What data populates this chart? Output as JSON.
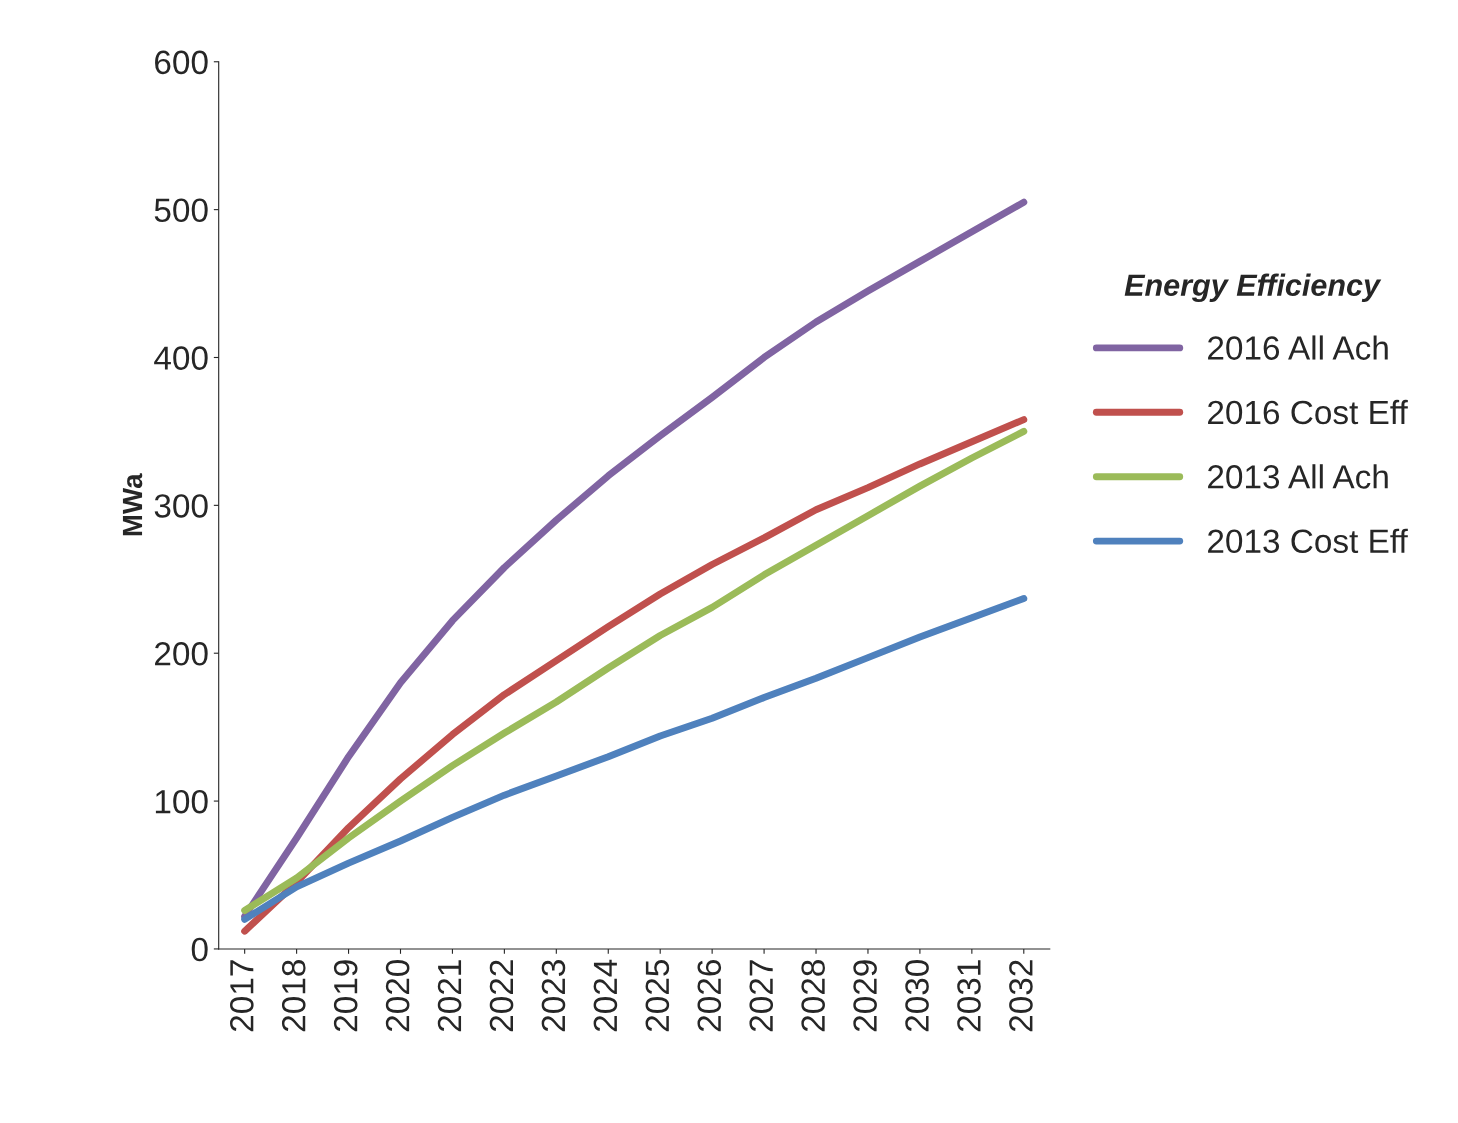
{
  "chart_data": {
    "type": "line",
    "ylabel": "MWa",
    "legend_title": "Energy Efficiency",
    "legend": "right",
    "grid": false,
    "marker": "none",
    "line_style": "solid",
    "categories": [
      "2017",
      "2018",
      "2019",
      "2020",
      "2021",
      "2022",
      "2023",
      "2024",
      "2025",
      "2026",
      "2027",
      "2028",
      "2029",
      "2030",
      "2031",
      "2032"
    ],
    "ylim": [
      0,
      600
    ],
    "yticks": [
      0,
      100,
      200,
      300,
      400,
      500,
      600
    ],
    "series": [
      {
        "name": "2016 All Ach",
        "color": "#8064a2",
        "values": [
          22,
          75,
          130,
          180,
          222,
          258,
          290,
          320,
          347,
          373,
          400,
          424,
          445,
          465,
          485,
          505
        ]
      },
      {
        "name": "2016 Cost Eff",
        "color": "#c0504d",
        "values": [
          12,
          45,
          82,
          115,
          145,
          172,
          195,
          218,
          240,
          260,
          278,
          297,
          312,
          328,
          343,
          358
        ]
      },
      {
        "name": "2013 All Ach",
        "color": "#9bbb59",
        "values": [
          26,
          48,
          75,
          100,
          124,
          146,
          167,
          190,
          212,
          231,
          253,
          273,
          293,
          313,
          332,
          350
        ]
      },
      {
        "name": "2013 Cost Eff",
        "color": "#4f81bd",
        "values": [
          20,
          42,
          58,
          73,
          89,
          104,
          117,
          130,
          144,
          156,
          170,
          183,
          197,
          211,
          224,
          237
        ]
      }
    ]
  }
}
